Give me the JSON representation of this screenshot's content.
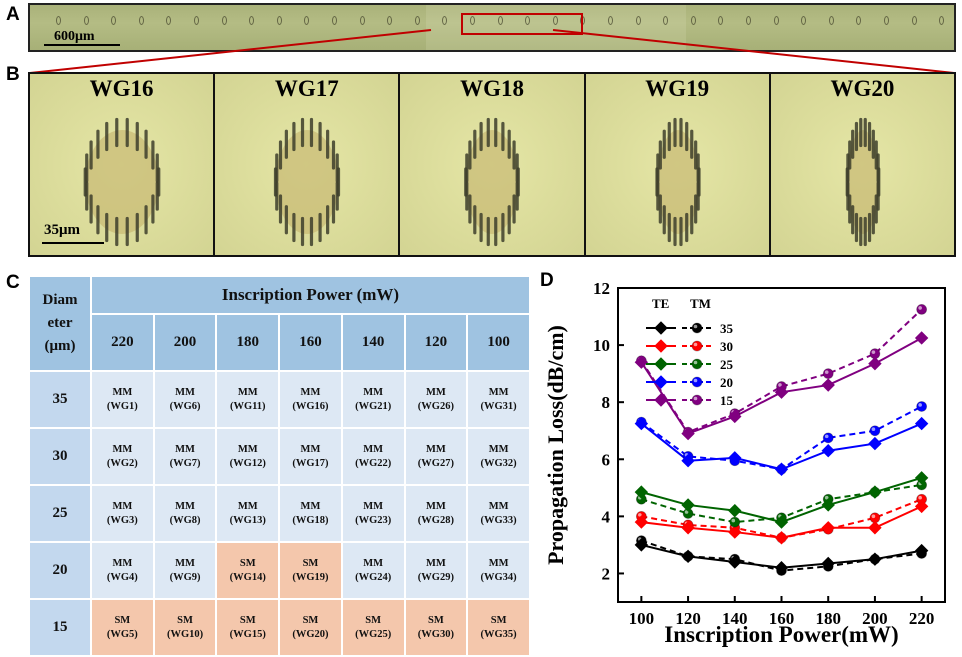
{
  "panels": {
    "a": "A",
    "b": "B",
    "c": "C",
    "d": "D"
  },
  "strip": {
    "scale_label": "600μm"
  },
  "micrographs": {
    "labels": [
      "WG16",
      "WG17",
      "WG18",
      "WG19",
      "WG20"
    ],
    "ring_diameters_um": [
      35,
      30,
      25,
      20,
      15
    ],
    "scale_label": "35μm"
  },
  "table": {
    "corner_label": "Diam eter (μm)",
    "power_header": "Inscription Power (mW)",
    "powers": [
      "220",
      "200",
      "180",
      "160",
      "140",
      "120",
      "100"
    ],
    "rows": [
      {
        "diameter": "35",
        "cells": [
          {
            "mode": "MM",
            "wg": "(WG1)"
          },
          {
            "mode": "MM",
            "wg": "(WG6)"
          },
          {
            "mode": "MM",
            "wg": "(WG11)"
          },
          {
            "mode": "MM",
            "wg": "(WG16)"
          },
          {
            "mode": "MM",
            "wg": "(WG21)"
          },
          {
            "mode": "MM",
            "wg": "(WG26)"
          },
          {
            "mode": "MM",
            "wg": "(WG31)"
          }
        ]
      },
      {
        "diameter": "30",
        "cells": [
          {
            "mode": "MM",
            "wg": "(WG2)"
          },
          {
            "mode": "MM",
            "wg": "(WG7)"
          },
          {
            "mode": "MM",
            "wg": "(WG12)"
          },
          {
            "mode": "MM",
            "wg": "(WG17)"
          },
          {
            "mode": "MM",
            "wg": "(WG22)"
          },
          {
            "mode": "MM",
            "wg": "(WG27)"
          },
          {
            "mode": "MM",
            "wg": "(WG32)"
          }
        ]
      },
      {
        "diameter": "25",
        "cells": [
          {
            "mode": "MM",
            "wg": "(WG3)"
          },
          {
            "mode": "MM",
            "wg": "(WG8)"
          },
          {
            "mode": "MM",
            "wg": "(WG13)"
          },
          {
            "mode": "MM",
            "wg": "(WG18)"
          },
          {
            "mode": "MM",
            "wg": "(WG23)"
          },
          {
            "mode": "MM",
            "wg": "(WG28)"
          },
          {
            "mode": "MM",
            "wg": "(WG33)"
          }
        ]
      },
      {
        "diameter": "20",
        "cells": [
          {
            "mode": "MM",
            "wg": "(WG4)"
          },
          {
            "mode": "MM",
            "wg": "(WG9)"
          },
          {
            "mode": "SM",
            "wg": "(WG14)"
          },
          {
            "mode": "SM",
            "wg": "(WG19)"
          },
          {
            "mode": "MM",
            "wg": "(WG24)"
          },
          {
            "mode": "MM",
            "wg": "(WG29)"
          },
          {
            "mode": "MM",
            "wg": "(WG34)"
          }
        ]
      },
      {
        "diameter": "15",
        "cells": [
          {
            "mode": "SM",
            "wg": "(WG5)"
          },
          {
            "mode": "SM",
            "wg": "(WG10)"
          },
          {
            "mode": "SM",
            "wg": "(WG15)"
          },
          {
            "mode": "SM",
            "wg": "(WG20)"
          },
          {
            "mode": "SM",
            "wg": "(WG25)"
          },
          {
            "mode": "SM",
            "wg": "(WG30)"
          },
          {
            "mode": "SM",
            "wg": "(WG35)"
          }
        ]
      }
    ],
    "colors": {
      "header": "#9fc3e1",
      "rowheader": "#c3d8ee",
      "mm": "#dde8f4",
      "sm": "#f4c7ac"
    }
  },
  "chart_data": {
    "type": "line",
    "xlabel": "Inscription Power(mW)",
    "ylabel": "Propagation Loss(dB/cm)",
    "x": [
      100,
      120,
      140,
      160,
      180,
      200,
      220
    ],
    "xlim": [
      90,
      230
    ],
    "ylim": [
      1,
      12
    ],
    "xticks": [
      "100",
      "120",
      "140",
      "160",
      "180",
      "200",
      "220"
    ],
    "yticks": [
      "2",
      "4",
      "6",
      "8",
      "10",
      "12"
    ],
    "legend": {
      "te": "TE",
      "tm": "TM",
      "position": "top-left"
    },
    "series": [
      {
        "name": "35",
        "color": "#000000",
        "te": [
          3.0,
          2.6,
          2.4,
          2.2,
          2.35,
          2.5,
          2.8
        ],
        "tm": [
          3.15,
          2.6,
          2.5,
          2.1,
          2.25,
          2.5,
          2.7
        ]
      },
      {
        "name": "30",
        "color": "#ff0000",
        "te": [
          3.8,
          3.6,
          3.45,
          3.25,
          3.6,
          3.6,
          4.35
        ],
        "tm": [
          4.0,
          3.7,
          3.6,
          3.25,
          3.55,
          3.95,
          4.6
        ]
      },
      {
        "name": "25",
        "color": "#006400",
        "te": [
          4.85,
          4.4,
          4.2,
          3.8,
          4.4,
          4.85,
          5.35
        ],
        "tm": [
          4.6,
          4.1,
          3.8,
          3.95,
          4.6,
          4.85,
          5.1
        ]
      },
      {
        "name": "20",
        "color": "#0000ff",
        "te": [
          7.25,
          5.95,
          6.05,
          5.65,
          6.3,
          6.55,
          7.25
        ],
        "tm": [
          7.3,
          6.1,
          5.95,
          5.65,
          6.75,
          7.0,
          7.85
        ]
      },
      {
        "name": "15",
        "color": "#800080",
        "te": [
          9.4,
          6.9,
          7.5,
          8.35,
          8.6,
          9.35,
          10.25
        ],
        "tm": [
          9.45,
          6.95,
          7.6,
          8.55,
          9.0,
          9.7,
          11.25
        ]
      }
    ]
  }
}
